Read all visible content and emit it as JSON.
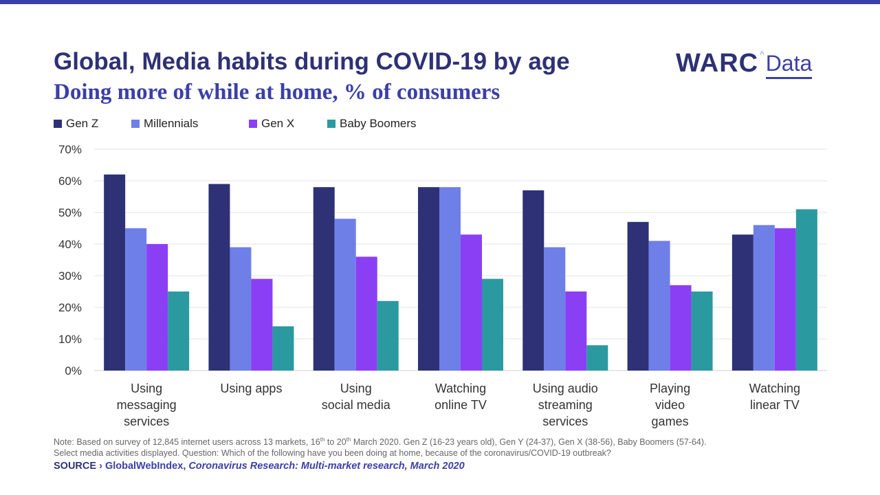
{
  "colors": {
    "top_bar": "#3b3fa8",
    "gen_z": "#2e3175",
    "millennials": "#6f7fe8",
    "gen_x": "#8a3ff5",
    "baby_boomers": "#2a9aa0"
  },
  "header": {
    "title": "Global, Media habits during COVID-19 by age",
    "subtitle": "Doing more of while at home, % of consumers"
  },
  "logo": {
    "brand": "WARC",
    "caret": "^",
    "product": "Data"
  },
  "chart_data": {
    "type": "bar",
    "title": "Global, Media habits during COVID-19 by age",
    "subtitle": "Doing more of while at home, % of consumers",
    "categories": [
      "Using messaging services",
      "Using apps",
      "Using social media",
      "Watching online TV",
      "Using audio streaming services",
      "Playing video games",
      "Watching linear TV"
    ],
    "category_lines": [
      [
        "Using",
        "messaging",
        "services"
      ],
      [
        "Using apps"
      ],
      [
        "Using",
        "social media"
      ],
      [
        "Watching",
        "online TV"
      ],
      [
        "Using audio",
        "streaming",
        "services"
      ],
      [
        "Playing",
        "video",
        "games"
      ],
      [
        "Watching",
        "linear TV"
      ]
    ],
    "series": [
      {
        "name": "Gen Z",
        "color": "#2e3175",
        "values": [
          62,
          59,
          58,
          58,
          57,
          47,
          43
        ]
      },
      {
        "name": "Millennials",
        "color": "#6f7fe8",
        "values": [
          45,
          39,
          48,
          58,
          39,
          41,
          46
        ]
      },
      {
        "name": "Gen X",
        "color": "#8a3ff5",
        "values": [
          40,
          29,
          36,
          43,
          25,
          27,
          45
        ]
      },
      {
        "name": "Baby Boomers",
        "color": "#2a9aa0",
        "values": [
          25,
          14,
          22,
          29,
          8,
          25,
          51
        ]
      }
    ],
    "ylim": [
      0,
      70
    ],
    "yticks": [
      0,
      10,
      20,
      30,
      40,
      50,
      60,
      70
    ],
    "ytick_labels": [
      "0%",
      "10%",
      "20%",
      "30%",
      "40%",
      "50%",
      "60%",
      "70%"
    ],
    "grid": true,
    "legend_position": "top-left"
  },
  "note": {
    "line1_a": "Note: Based on survey of 12,845 internet users across 13 markets, 16",
    "sup1": "th",
    "line1_b": " to 20",
    "sup2": "th",
    "line1_c": " March 2020. Gen Z (16-23 years old), Gen Y (24-37), Gen X (38-56), Baby Boomers (57-64).",
    "line2": "Select media activities displayed.  Question: Which of the following have you been doing at home, because of the coronavirus/COVID-19 outbreak?"
  },
  "source": {
    "label": "SOURCE",
    "separator": " › ",
    "org": "GlobalWebIndex, ",
    "title": "Coronavirus Research: Multi-market research, March 2020"
  }
}
